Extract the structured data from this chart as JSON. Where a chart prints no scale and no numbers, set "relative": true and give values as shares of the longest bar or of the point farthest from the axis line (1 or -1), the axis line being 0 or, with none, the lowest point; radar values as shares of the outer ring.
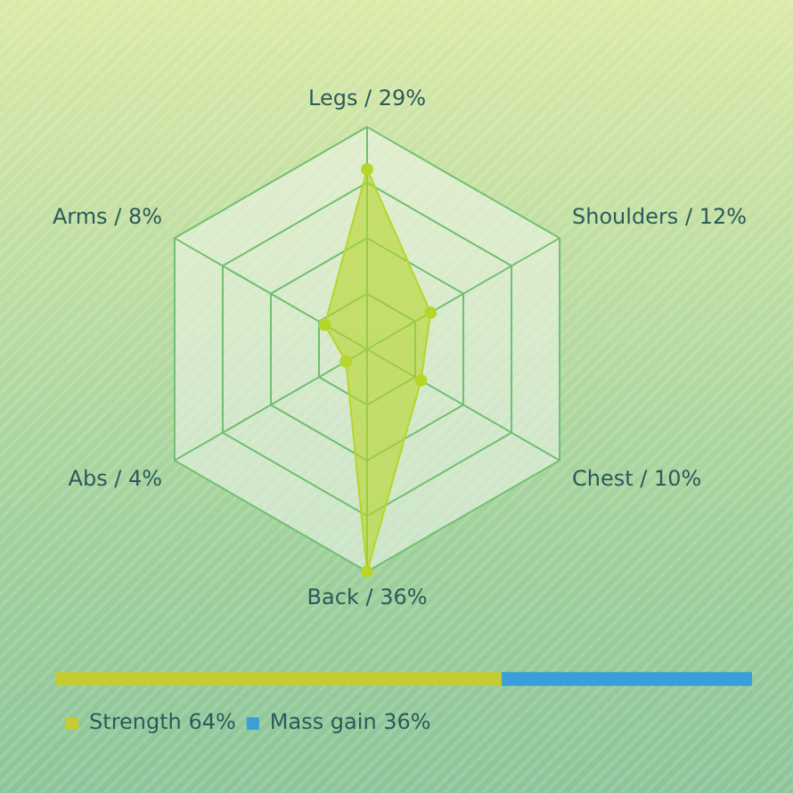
{
  "chart_data": [
    {
      "type": "radar",
      "categories": [
        "Legs / 29%",
        "Shoulders / 12%",
        "Chest / 10%",
        "Back / 36%",
        "Abs / 4%",
        "Arms / 8%"
      ],
      "relative": true,
      "grid": true,
      "legend": false,
      "marker": "circle",
      "series": [
        {
          "color": "#b5d62a",
          "values": [
            0.81,
            0.33,
            0.28,
            1,
            0.11,
            0.22
          ]
        }
      ]
    },
    {
      "type": "bar",
      "orientation": "horizontal",
      "stacked": true,
      "categories": [
        null
      ],
      "relative": true,
      "legend": "bottom left",
      "series": [
        {
          "name": "Strength 64%",
          "color": "#c3cc32",
          "values": [
            0.64
          ]
        },
        {
          "name": "Mass gain 36%",
          "color": "#3a9fd8",
          "values": [
            0.36
          ]
        }
      ]
    }
  ]
}
